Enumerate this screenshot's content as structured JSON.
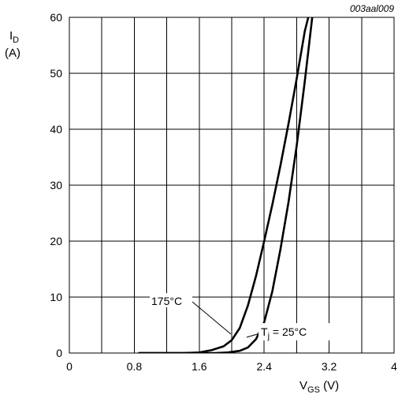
{
  "figure_id": "003aal009",
  "chart_data": {
    "type": "line",
    "title": "",
    "ylabel": {
      "main": "I",
      "sub": "D",
      "unit": "(A)"
    },
    "xlabel": {
      "main": "V",
      "sub": "GS",
      "unit": " (V)"
    },
    "xlim": [
      0,
      4
    ],
    "ylim": [
      0,
      60
    ],
    "x_ticks": [
      "0",
      "0.8",
      "1.6",
      "2.4",
      "3.2",
      "4"
    ],
    "y_ticks": [
      "0",
      "10",
      "20",
      "30",
      "40",
      "50",
      "60"
    ],
    "x_tick_values": [
      0,
      0.8,
      1.6,
      2.4,
      3.2,
      4
    ],
    "y_tick_values": [
      0,
      10,
      20,
      30,
      40,
      50,
      60
    ],
    "grid": true,
    "series": [
      {
        "name": "175°C",
        "points": [
          [
            0.86,
            0
          ],
          [
            1.4,
            0
          ],
          [
            1.6,
            0.1
          ],
          [
            1.75,
            0.5
          ],
          [
            1.9,
            1.2
          ],
          [
            2.0,
            2.3
          ],
          [
            2.1,
            4.5
          ],
          [
            2.2,
            8.5
          ],
          [
            2.3,
            13.8
          ],
          [
            2.4,
            20
          ],
          [
            2.5,
            26.5
          ],
          [
            2.6,
            33.5
          ],
          [
            2.7,
            41
          ],
          [
            2.8,
            49
          ],
          [
            2.9,
            57.5
          ],
          [
            2.96,
            61
          ]
        ]
      },
      {
        "name": "T_j = 25°C",
        "points": [
          [
            0.86,
            0
          ],
          [
            1.8,
            0
          ],
          [
            1.95,
            0.1
          ],
          [
            2.1,
            0.4
          ],
          [
            2.2,
            1.0
          ],
          [
            2.3,
            2.5
          ],
          [
            2.4,
            5.5
          ],
          [
            2.5,
            11
          ],
          [
            2.6,
            18.5
          ],
          [
            2.7,
            27
          ],
          [
            2.8,
            37
          ],
          [
            2.9,
            48.5
          ],
          [
            3.0,
            61
          ]
        ]
      }
    ],
    "annotations": [
      {
        "text": "175°C",
        "points_to_series": 0
      },
      {
        "main": "T",
        "sub": "j",
        "rest": " = 25°C",
        "points_to_series": 1
      }
    ]
  }
}
